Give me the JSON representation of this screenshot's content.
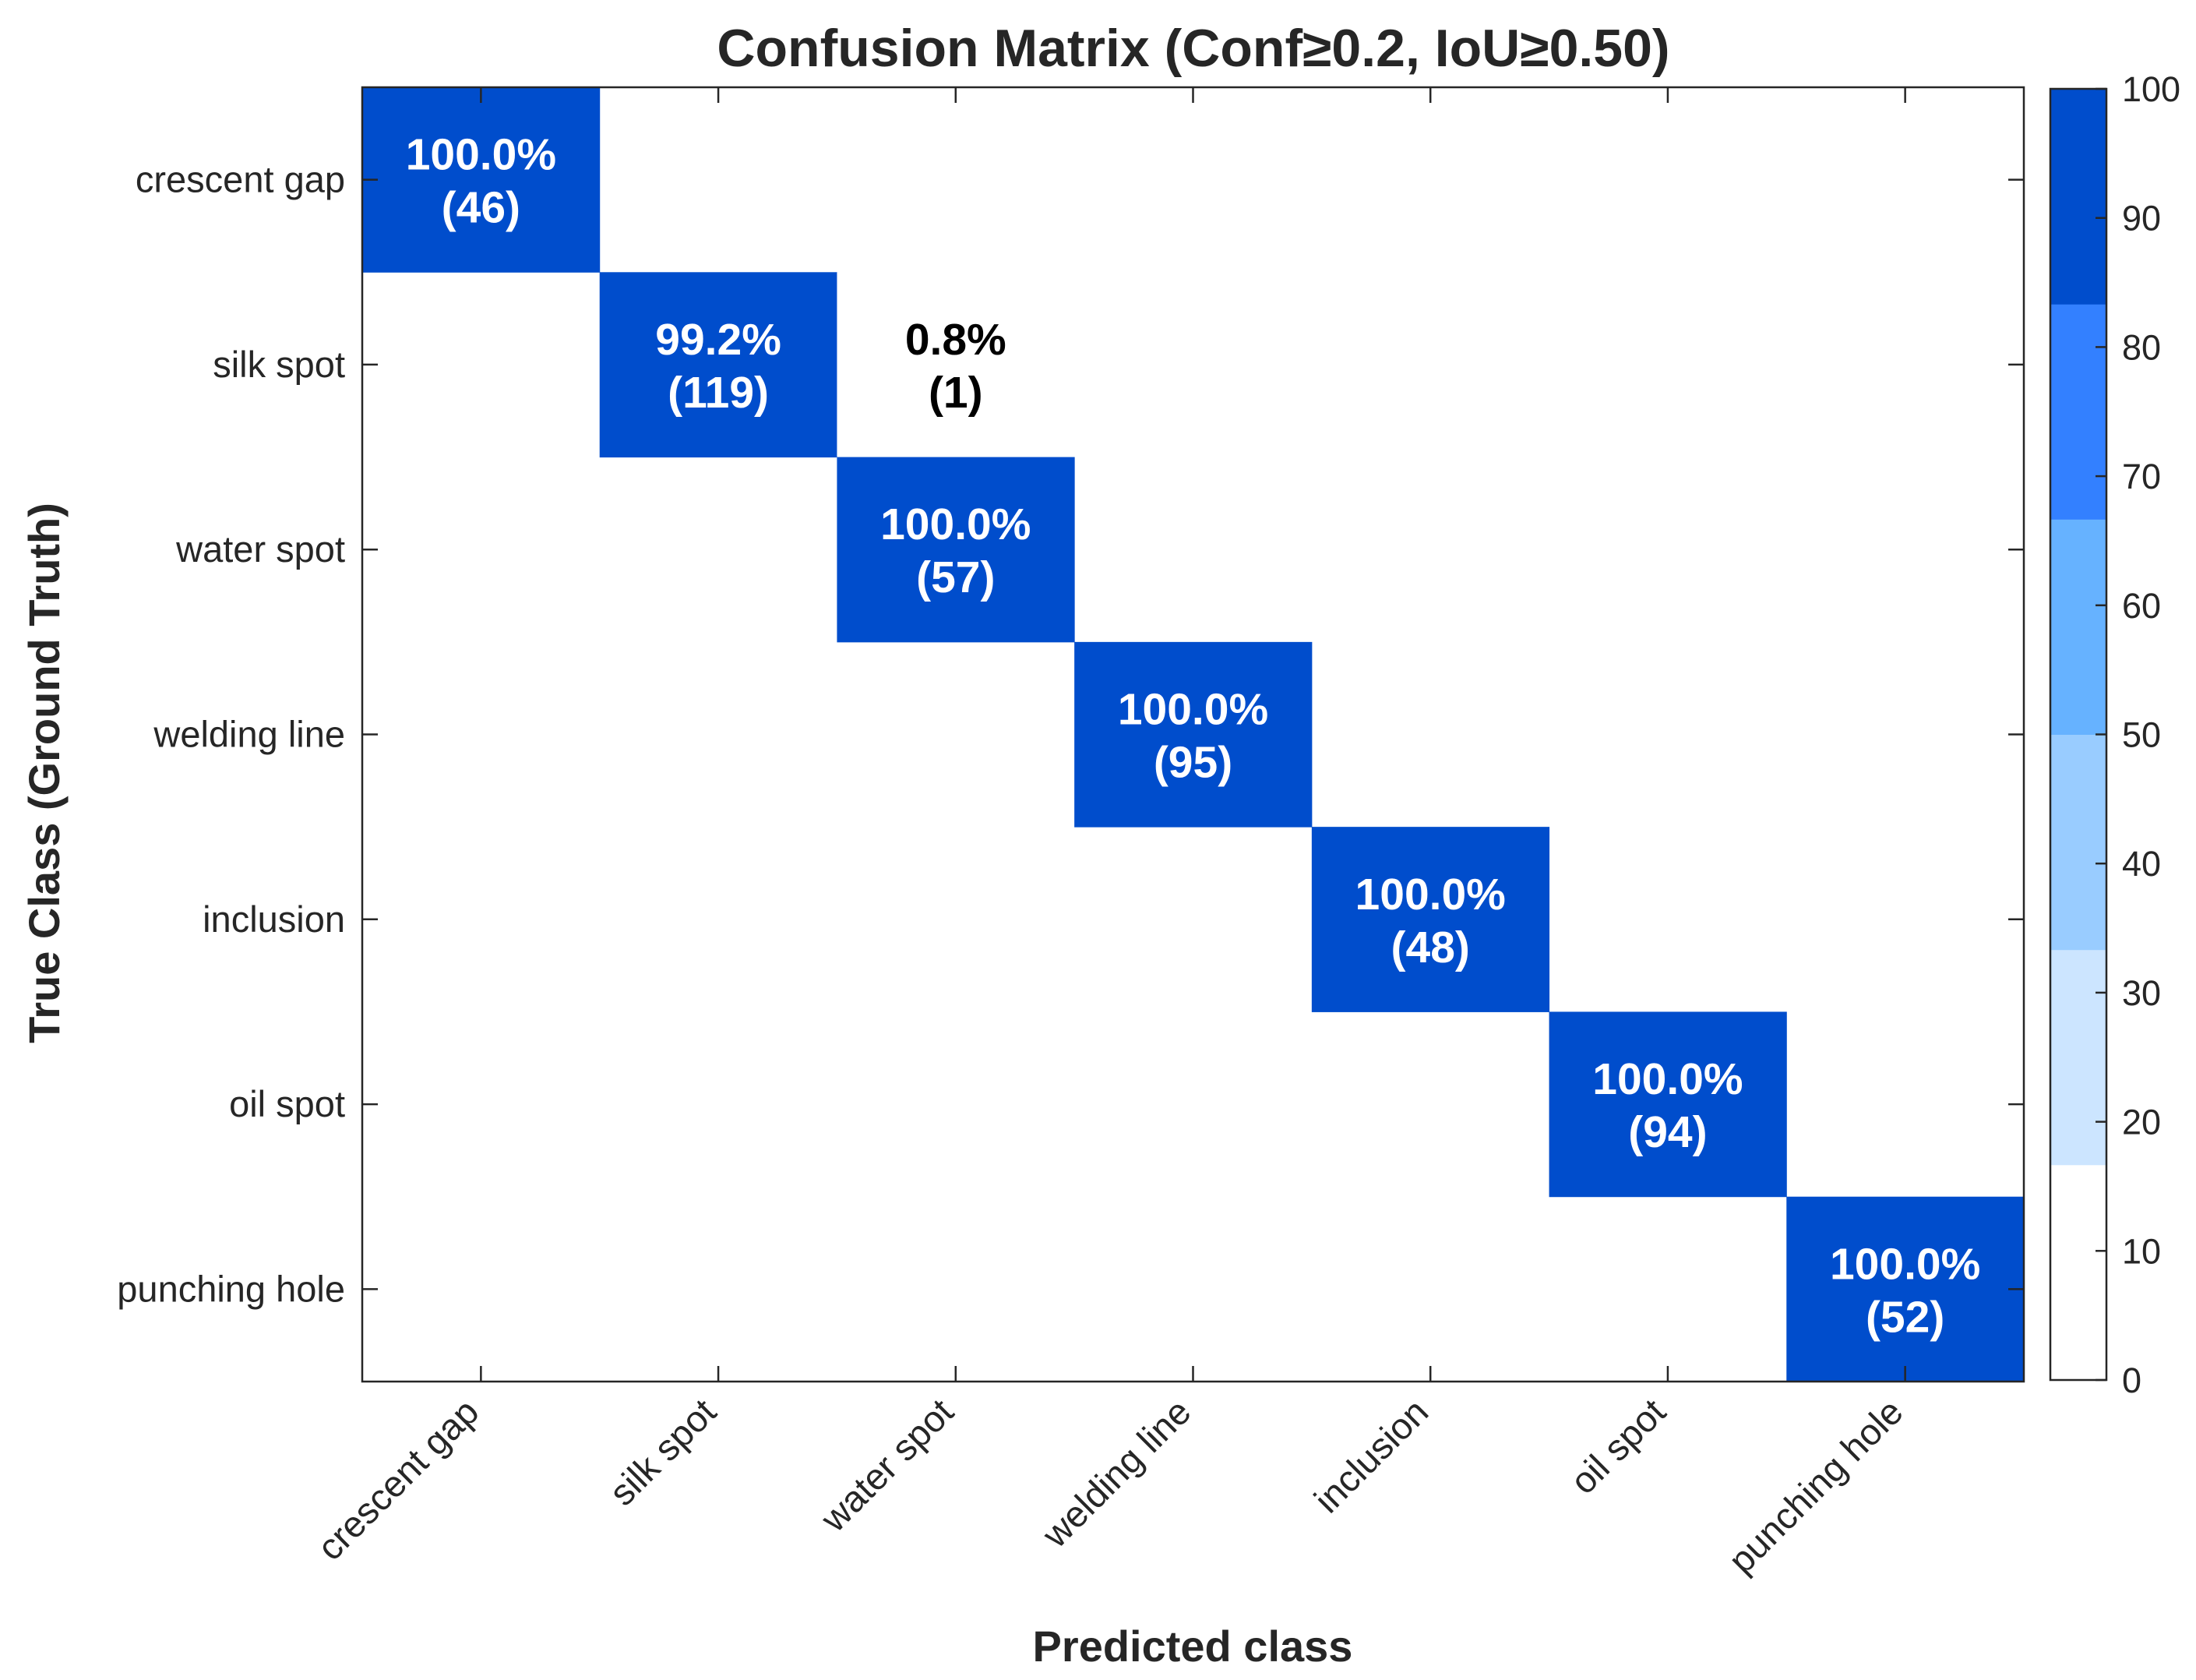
{
  "chart_data": {
    "type": "heatmap",
    "title": "Confusion Matrix (Conf≥0.2, IoU≥0.50)",
    "xlabel": "Predicted class",
    "ylabel": "True Class (Ground Truth)",
    "x_categories": [
      "crescent gap",
      "silk spot",
      "water spot",
      "welding line",
      "inclusion",
      "oil spot",
      "punching hole"
    ],
    "y_categories": [
      "crescent gap",
      "silk spot",
      "water spot",
      "welding line",
      "inclusion",
      "oil spot",
      "punching hole"
    ],
    "cells": [
      {
        "row": 0,
        "col": 0,
        "percent": 100.0,
        "count": 46,
        "pct_label": "100.0%",
        "count_label": "(46)"
      },
      {
        "row": 1,
        "col": 1,
        "percent": 99.2,
        "count": 119,
        "pct_label": "99.2%",
        "count_label": "(119)"
      },
      {
        "row": 1,
        "col": 2,
        "percent": 0.8,
        "count": 1,
        "pct_label": "0.8%",
        "count_label": "(1)"
      },
      {
        "row": 2,
        "col": 2,
        "percent": 100.0,
        "count": 57,
        "pct_label": "100.0%",
        "count_label": "(57)"
      },
      {
        "row": 3,
        "col": 3,
        "percent": 100.0,
        "count": 95,
        "pct_label": "100.0%",
        "count_label": "(95)"
      },
      {
        "row": 4,
        "col": 4,
        "percent": 100.0,
        "count": 48,
        "pct_label": "100.0%",
        "count_label": "(48)"
      },
      {
        "row": 5,
        "col": 5,
        "percent": 100.0,
        "count": 94,
        "pct_label": "100.0%",
        "count_label": "(94)"
      },
      {
        "row": 6,
        "col": 6,
        "percent": 100.0,
        "count": 52,
        "pct_label": "100.0%",
        "count_label": "(52)"
      }
    ],
    "colorbar": {
      "range": [
        0,
        100
      ],
      "ticks": [
        0,
        10,
        20,
        30,
        40,
        50,
        60,
        70,
        80,
        90,
        100
      ],
      "bands": [
        {
          "from": 0,
          "to": 16.67,
          "color": "#ffffff"
        },
        {
          "from": 16.67,
          "to": 33.33,
          "color": "#cce5ff"
        },
        {
          "from": 33.33,
          "to": 50,
          "color": "#99ccff"
        },
        {
          "from": 50,
          "to": 66.67,
          "color": "#66b2ff"
        },
        {
          "from": 66.67,
          "to": 83.33,
          "color": "#3380ff"
        },
        {
          "from": 83.33,
          "to": 100,
          "color": "#004dcc"
        }
      ]
    },
    "grid": false
  }
}
